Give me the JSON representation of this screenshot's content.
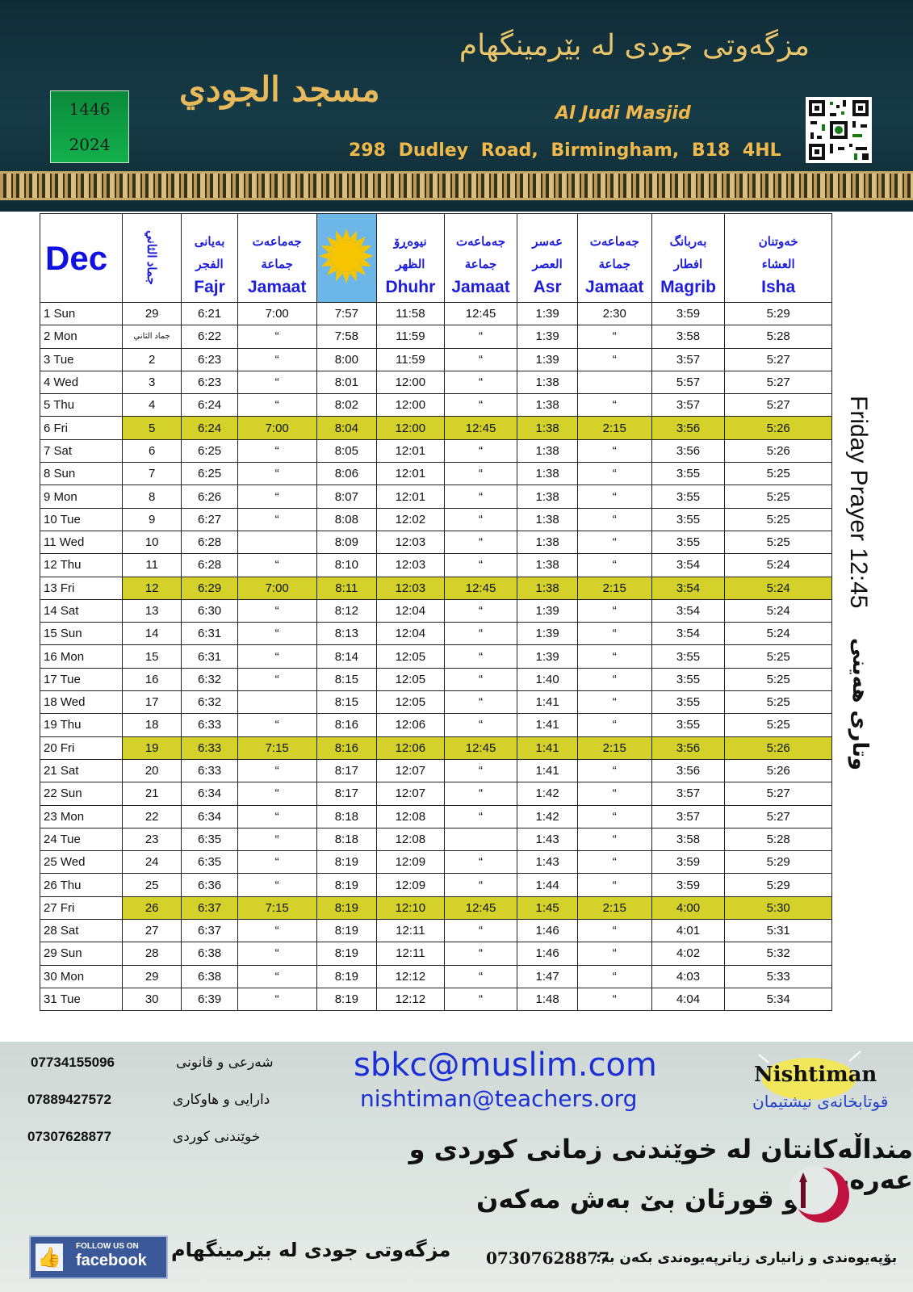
{
  "header": {
    "title_kurdish": "مزگەوتی جودی لە بێرمینگهام",
    "title_arabic": "مسجد الجودي",
    "year_hijri": "1446",
    "year_gregorian": "2024",
    "english_name": "Al Judi Masjid",
    "address": "298  Dudley Road,   Birmingham,   B18 4HL",
    "colors": {
      "background": "#163b47",
      "gold": "#e9c46a",
      "year_box": "#13b04d"
    }
  },
  "table": {
    "month": "Dec",
    "hijri_month_header": "جماد الثاني",
    "columns": [
      {
        "ku": "بەیانی",
        "ar": "الفجر",
        "en": "Fajr"
      },
      {
        "ku": "جەماعەت",
        "ar": "جماعة",
        "en": "Jamaat"
      },
      {
        "ku": "",
        "ar": "",
        "en": "",
        "icon": "sun-icon"
      },
      {
        "ku": "نیوەڕۆ",
        "ar": "الظهر",
        "en": "Dhuhr"
      },
      {
        "ku": "جەماعەت",
        "ar": "جماعة",
        "en": "Jamaat"
      },
      {
        "ku": "عەسر",
        "ar": "العصر",
        "en": "Asr"
      },
      {
        "ku": "جەماعەت",
        "ar": "جماعة",
        "en": "Jamaat"
      },
      {
        "ku": "بەربانگ",
        "ar": "افطار",
        "en": "Magrib"
      },
      {
        "ku": "خەوتنان",
        "ar": "العشاء",
        "en": "Isha"
      }
    ],
    "highlight_color": "#d4d12a",
    "rows": [
      [
        "1 Sun",
        "29",
        "6:21",
        "7:00",
        "7:57",
        "11:58",
        "12:45",
        "1:39",
        "2:30",
        "3:59",
        "5:29"
      ],
      [
        "2 Mon",
        "جماد الثاني",
        "6:22",
        "“",
        "7:58",
        "11:59",
        "“",
        "1:39",
        "“",
        "3:58",
        "5:28"
      ],
      [
        "3 Tue",
        "2",
        "6:23",
        "“",
        "8:00",
        "11:59",
        "“",
        "1:39",
        "“",
        "3:57",
        "5:27"
      ],
      [
        "4 Wed",
        "3",
        "6:23",
        "“",
        "8:01",
        "12:00",
        "“",
        "1:38",
        "",
        "5:57",
        "5:27"
      ],
      [
        "5 Thu",
        "4",
        "6:24",
        "“",
        "8:02",
        "12:00",
        "“",
        "1:38",
        "“",
        "3:57",
        "5:27"
      ],
      [
        "6 Fri",
        "5",
        "6:24",
        "7:00",
        "8:04",
        "12:00",
        "12:45",
        "1:38",
        "2:15",
        "3:56",
        "5:26"
      ],
      [
        "7 Sat",
        "6",
        "6:25",
        "“",
        "8:05",
        "12:01",
        "“",
        "1:38",
        "“",
        "3:56",
        "5:26"
      ],
      [
        "8 Sun",
        "7",
        "6:25",
        "“",
        "8:06",
        "12:01",
        "“",
        "1:38",
        "“",
        "3:55",
        "5:25"
      ],
      [
        "9 Mon",
        "8",
        "6:26",
        "“",
        "8:07",
        "12:01",
        "“",
        "1:38",
        "“",
        "3:55",
        "5:25"
      ],
      [
        "10 Tue",
        "9",
        "6:27",
        "“",
        "8:08",
        "12:02",
        "“",
        "1:38",
        "“",
        "3:55",
        "5:25"
      ],
      [
        "11 Wed",
        "10",
        "6:28",
        "",
        "8:09",
        "12:03",
        "“",
        "1:38",
        "“",
        "3:55",
        "5:25"
      ],
      [
        "12 Thu",
        "11",
        "6:28",
        "“",
        "8:10",
        "12:03",
        "“",
        "1:38",
        "“",
        "3:54",
        "5:24"
      ],
      [
        "13 Fri",
        "12",
        "6:29",
        "7:00",
        "8:11",
        "12:03",
        "12:45",
        "1:38",
        "2:15",
        "3:54",
        "5:24"
      ],
      [
        "14 Sat",
        "13",
        "6:30",
        "“",
        "8:12",
        "12:04",
        "“",
        "1:39",
        "“",
        "3:54",
        "5:24"
      ],
      [
        "15 Sun",
        "14",
        "6:31",
        "“",
        "8:13",
        "12:04",
        "“",
        "1:39",
        "“",
        "3:54",
        "5:24"
      ],
      [
        "16 Mon",
        "15",
        "6:31",
        "“",
        "8:14",
        "12:05",
        "“",
        "1:39",
        "“",
        "3:55",
        "5:25"
      ],
      [
        "17 Tue",
        "16",
        "6:32",
        "“",
        "8:15",
        "12:05",
        "“",
        "1:40",
        "“",
        "3:55",
        "5:25"
      ],
      [
        "18 Wed",
        "17",
        "6:32",
        "",
        "8:15",
        "12:05",
        "“",
        "1:41",
        "“",
        "3:55",
        "5:25"
      ],
      [
        "19 Thu",
        "18",
        "6:33",
        "“",
        "8:16",
        "12:06",
        "“",
        "1:41",
        "“",
        "3:55",
        "5:25"
      ],
      [
        "20 Fri",
        "19",
        "6:33",
        "7:15",
        "8:16",
        "12:06",
        "12:45",
        "1:41",
        "2:15",
        "3:56",
        "5:26"
      ],
      [
        "21 Sat",
        "20",
        "6:33",
        "“",
        "8:17",
        "12:07",
        "“",
        "1:41",
        "“",
        "3:56",
        "5:26"
      ],
      [
        "22 Sun",
        "21",
        "6:34",
        "“",
        "8:17",
        "12:07",
        "“",
        "1:42",
        "“",
        "3:57",
        "5:27"
      ],
      [
        "23 Mon",
        "22",
        "6:34",
        "“",
        "8:18",
        "12:08",
        "“",
        "1:42",
        "“",
        "3:57",
        "5:27"
      ],
      [
        "24 Tue",
        "23",
        "6:35",
        "“",
        "8:18",
        "12:08",
        "",
        "1:43",
        "“",
        "3:58",
        "5:28"
      ],
      [
        "25 Wed",
        "24",
        "6:35",
        "“",
        "8:19",
        "12:09",
        "“",
        "1:43",
        "“",
        "3:59",
        "5:29"
      ],
      [
        "26 Thu",
        "25",
        "6:36",
        "“",
        "8:19",
        "12:09",
        "“",
        "1:44",
        "“",
        "3:59",
        "5:29"
      ],
      [
        "27 Fri",
        "26",
        "6:37",
        "7:15",
        "8:19",
        "12:10",
        "12:45",
        "1:45",
        "2:15",
        "4:00",
        "5:30"
      ],
      [
        "28 Sat",
        "27",
        "6:37",
        "“",
        "8:19",
        "12:11",
        "“",
        "1:46",
        "“",
        "4:01",
        "5:31"
      ],
      [
        "29 Sun",
        "28",
        "6:38",
        "“",
        "8:19",
        "12:11",
        "“",
        "1:46",
        "“",
        "4:02",
        "5:32"
      ],
      [
        "30 Mon",
        "29",
        "6:38",
        "“",
        "8:19",
        "12:12",
        "“",
        "1:47",
        "“",
        "4:03",
        "5:33"
      ],
      [
        "31 Tue",
        "30",
        "6:39",
        "“",
        "8:19",
        "12:12",
        "“",
        "1:48",
        "“",
        "4:04",
        "5:34"
      ]
    ]
  },
  "side": {
    "friday_prayer": "Friday  Prayer 12:45",
    "friday_prayer_ku": "وتاری هەینی"
  },
  "footer": {
    "contacts": [
      {
        "phone": "07734155096",
        "service": "شەرعی و قانونی"
      },
      {
        "phone": "07889427572",
        "service": "دارایی و هاوکاری"
      },
      {
        "phone": "07307628877",
        "service": "خوێندنی کوردی"
      }
    ],
    "email_1": "sbkc@muslim.com",
    "email_2": "nishtiman@teachers.org",
    "school_name": "Nishtiman",
    "school_name_ku": "قوتابخانەی نیشتیمان",
    "message_line_1": "منداڵەکانتان لە خوێندنی زمانی کوردی و عەرەبی",
    "message_line_2": "و قورئان بێ بەش مەکەن",
    "facebook_small": "FOLLOW US ON",
    "facebook_big": "facebook",
    "mosque_name": "مزگەوتی جودی لە بێرمینگهام",
    "contact_phone": "07307628877",
    "contact_text": "بۆپەیوەندی و زانیاری زیاترپەیوەندی بکەن بە:"
  }
}
